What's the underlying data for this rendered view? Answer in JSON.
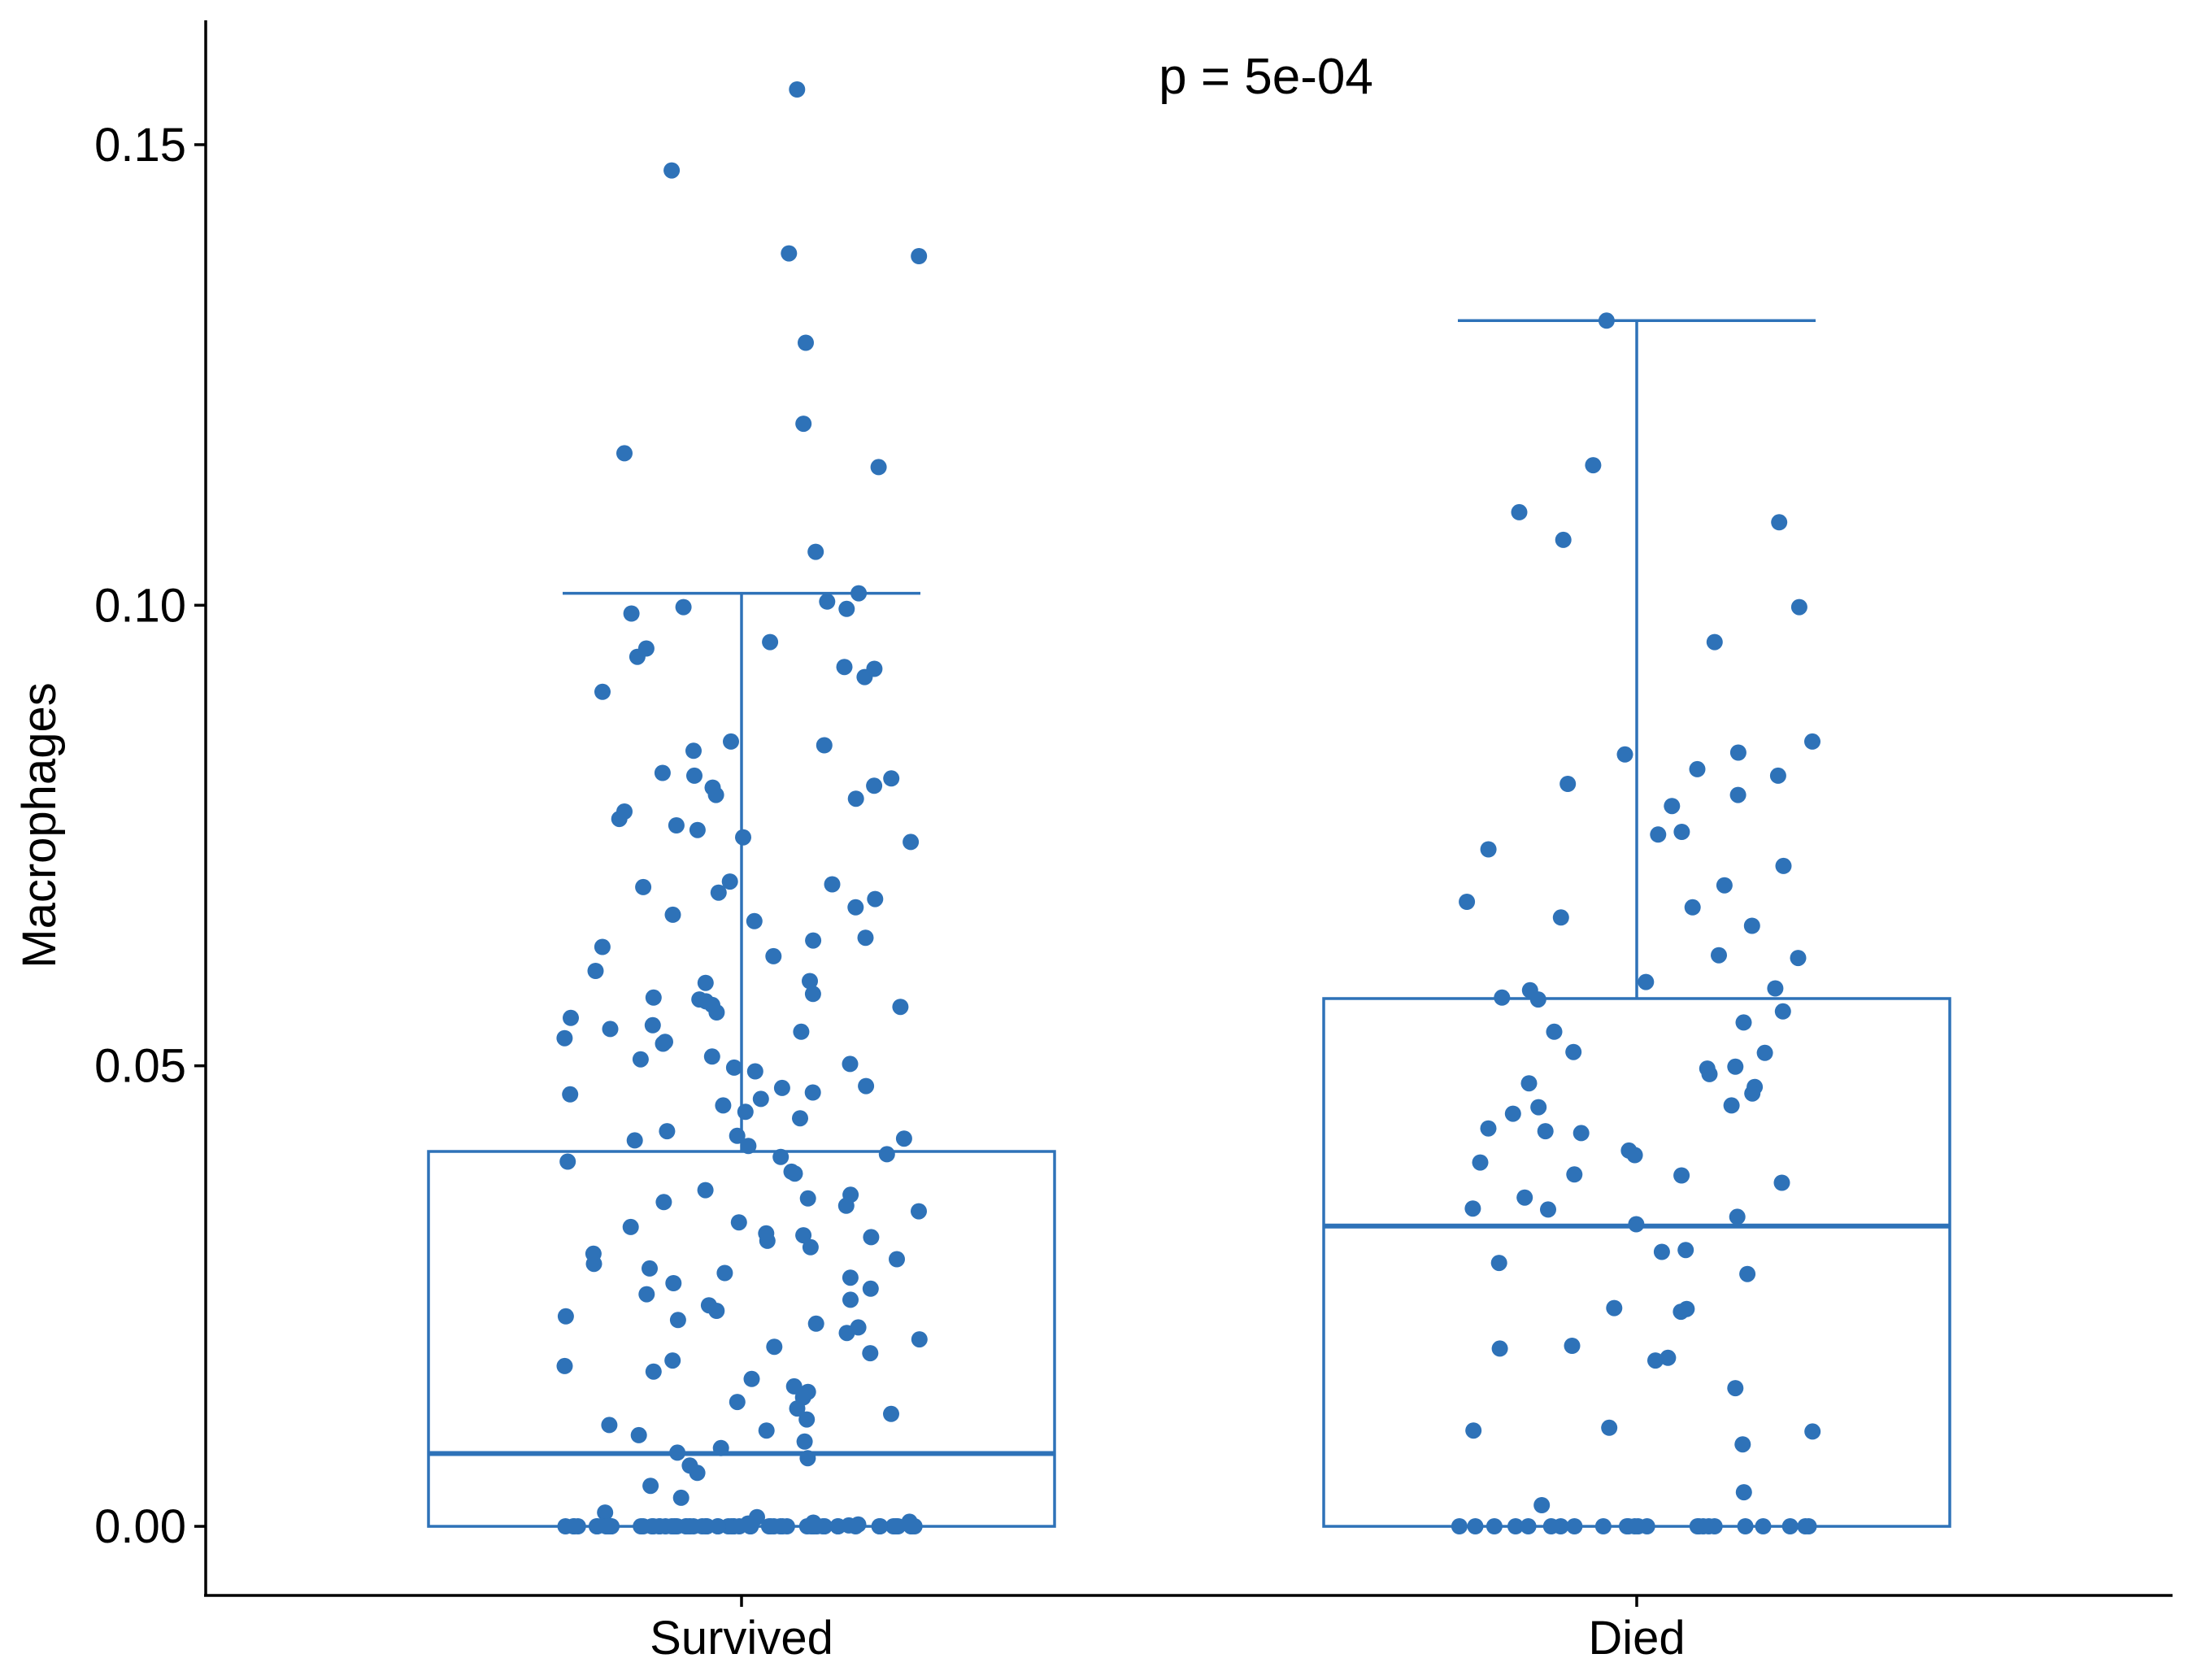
{
  "chart_data": {
    "type": "box",
    "ylabel": "Macrophages",
    "xlabel": "",
    "annotation": "p = 5e-04",
    "ylim": [
      -0.0075,
      0.1635
    ],
    "yticks": [
      0.0,
      0.05,
      0.1,
      0.15
    ],
    "ytick_labels": [
      "0.00",
      "0.05",
      "0.10",
      "0.15"
    ],
    "categories": [
      "Survived",
      "Died"
    ],
    "boxes": [
      {
        "category": "Survived",
        "min": 0.0,
        "q1": 0.0,
        "median": 0.0079,
        "q3": 0.0407,
        "max": 0.1013
      },
      {
        "category": "Died",
        "min": 0.0,
        "q1": 0.0,
        "median": 0.0326,
        "q3": 0.0573,
        "max": 0.1309
      }
    ],
    "points": {
      "Survived": [
        0.156,
        0.1472,
        0.1382,
        0.1379,
        0.1285,
        0.1197,
        0.1165,
        0.115,
        0.1058,
        0.1013,
        0.1004,
        0.0998,
        0.0996,
        0.0991,
        0.096,
        0.0953,
        0.0944,
        0.0933,
        0.0931,
        0.0922,
        0.0906,
        0.0852,
        0.0848,
        0.0842,
        0.0818,
        0.0815,
        0.0812,
        0.0804,
        0.0802,
        0.0794,
        0.079,
        0.0776,
        0.0768,
        0.0761,
        0.0756,
        0.0748,
        0.0743,
        0.07,
        0.0697,
        0.0694,
        0.0688,
        0.0681,
        0.0672,
        0.0664,
        0.0657,
        0.0639,
        0.0636,
        0.0629,
        0.0619,
        0.0603,
        0.0592,
        0.059,
        0.0578,
        0.0574,
        0.0572,
        0.057,
        0.0566,
        0.0564,
        0.0558,
        0.0552,
        0.0544,
        0.054,
        0.0537,
        0.053,
        0.0526,
        0.0524,
        0.051,
        0.0507,
        0.0502,
        0.0498,
        0.0494,
        0.0478,
        0.0476,
        0.0471,
        0.0469,
        0.0464,
        0.0457,
        0.045,
        0.0443,
        0.0429,
        0.0424,
        0.0421,
        0.0419,
        0.0413,
        0.0404,
        0.0401,
        0.0396,
        0.0385,
        0.0383,
        0.0365,
        0.036,
        0.0356,
        0.0352,
        0.0348,
        0.0342,
        0.033,
        0.0325,
        0.0318,
        0.0316,
        0.0314,
        0.031,
        0.0303,
        0.0296,
        0.029,
        0.0285,
        0.028,
        0.0275,
        0.027,
        0.0264,
        0.0258,
        0.0252,
        0.0246,
        0.024,
        0.0234,
        0.0228,
        0.0224,
        0.022,
        0.0216,
        0.021,
        0.0203,
        0.0195,
        0.0188,
        0.018,
        0.0174,
        0.0168,
        0.016,
        0.0152,
        0.0146,
        0.014,
        0.0135,
        0.0128,
        0.0122,
        0.0116,
        0.011,
        0.0104,
        0.0099,
        0.0092,
        0.0085,
        0.008,
        0.0074,
        0.0066,
        0.0058,
        0.0044,
        0.0031,
        0.0015,
        0.001,
        0.0005,
        0.0004,
        0.0003,
        0.0002,
        0.0001,
        0,
        0,
        0,
        0,
        0,
        0,
        0,
        0,
        0,
        0,
        0,
        0,
        0,
        0,
        0,
        0,
        0,
        0,
        0,
        0,
        0,
        0,
        0,
        0,
        0,
        0,
        0,
        0,
        0,
        0,
        0,
        0,
        0,
        0,
        0,
        0,
        0,
        0,
        0,
        0,
        0,
        0,
        0,
        0,
        0,
        0,
        0,
        0,
        0,
        0,
        0,
        0,
        0,
        0,
        0,
        0,
        0,
        0,
        0,
        0,
        0,
        0,
        0,
        0,
        0,
        0,
        0
      ],
      "Died": [
        0.1309,
        0.1152,
        0.1101,
        0.109,
        0.1071,
        0.0998,
        0.096,
        0.0852,
        0.084,
        0.0838,
        0.0822,
        0.0815,
        0.0806,
        0.0794,
        0.0782,
        0.0754,
        0.0751,
        0.0735,
        0.0717,
        0.0696,
        0.0678,
        0.0672,
        0.0661,
        0.0652,
        0.062,
        0.0617,
        0.0591,
        0.0584,
        0.0582,
        0.0574,
        0.0572,
        0.0559,
        0.0547,
        0.0537,
        0.0515,
        0.0514,
        0.0499,
        0.0497,
        0.0491,
        0.0481,
        0.0477,
        0.047,
        0.0457,
        0.0455,
        0.0448,
        0.0432,
        0.0429,
        0.0427,
        0.0408,
        0.0403,
        0.0395,
        0.0382,
        0.0381,
        0.0373,
        0.0357,
        0.0345,
        0.0344,
        0.0336,
        0.0328,
        0.03,
        0.0298,
        0.0286,
        0.0274,
        0.0237,
        0.0236,
        0.0233,
        0.0196,
        0.0193,
        0.0183,
        0.018,
        0.015,
        0.0107,
        0.0104,
        0.0103,
        0.0089,
        0.0037,
        0.0023,
        0,
        0,
        0,
        0,
        0,
        0,
        0,
        0,
        0,
        0,
        0,
        0,
        0,
        0,
        0,
        0,
        0,
        0,
        0,
        0,
        0,
        0,
        0,
        0
      ]
    },
    "colors": {
      "series": "#2e72b8",
      "axis": "#000000"
    },
    "grid": false,
    "legend": "none"
  }
}
